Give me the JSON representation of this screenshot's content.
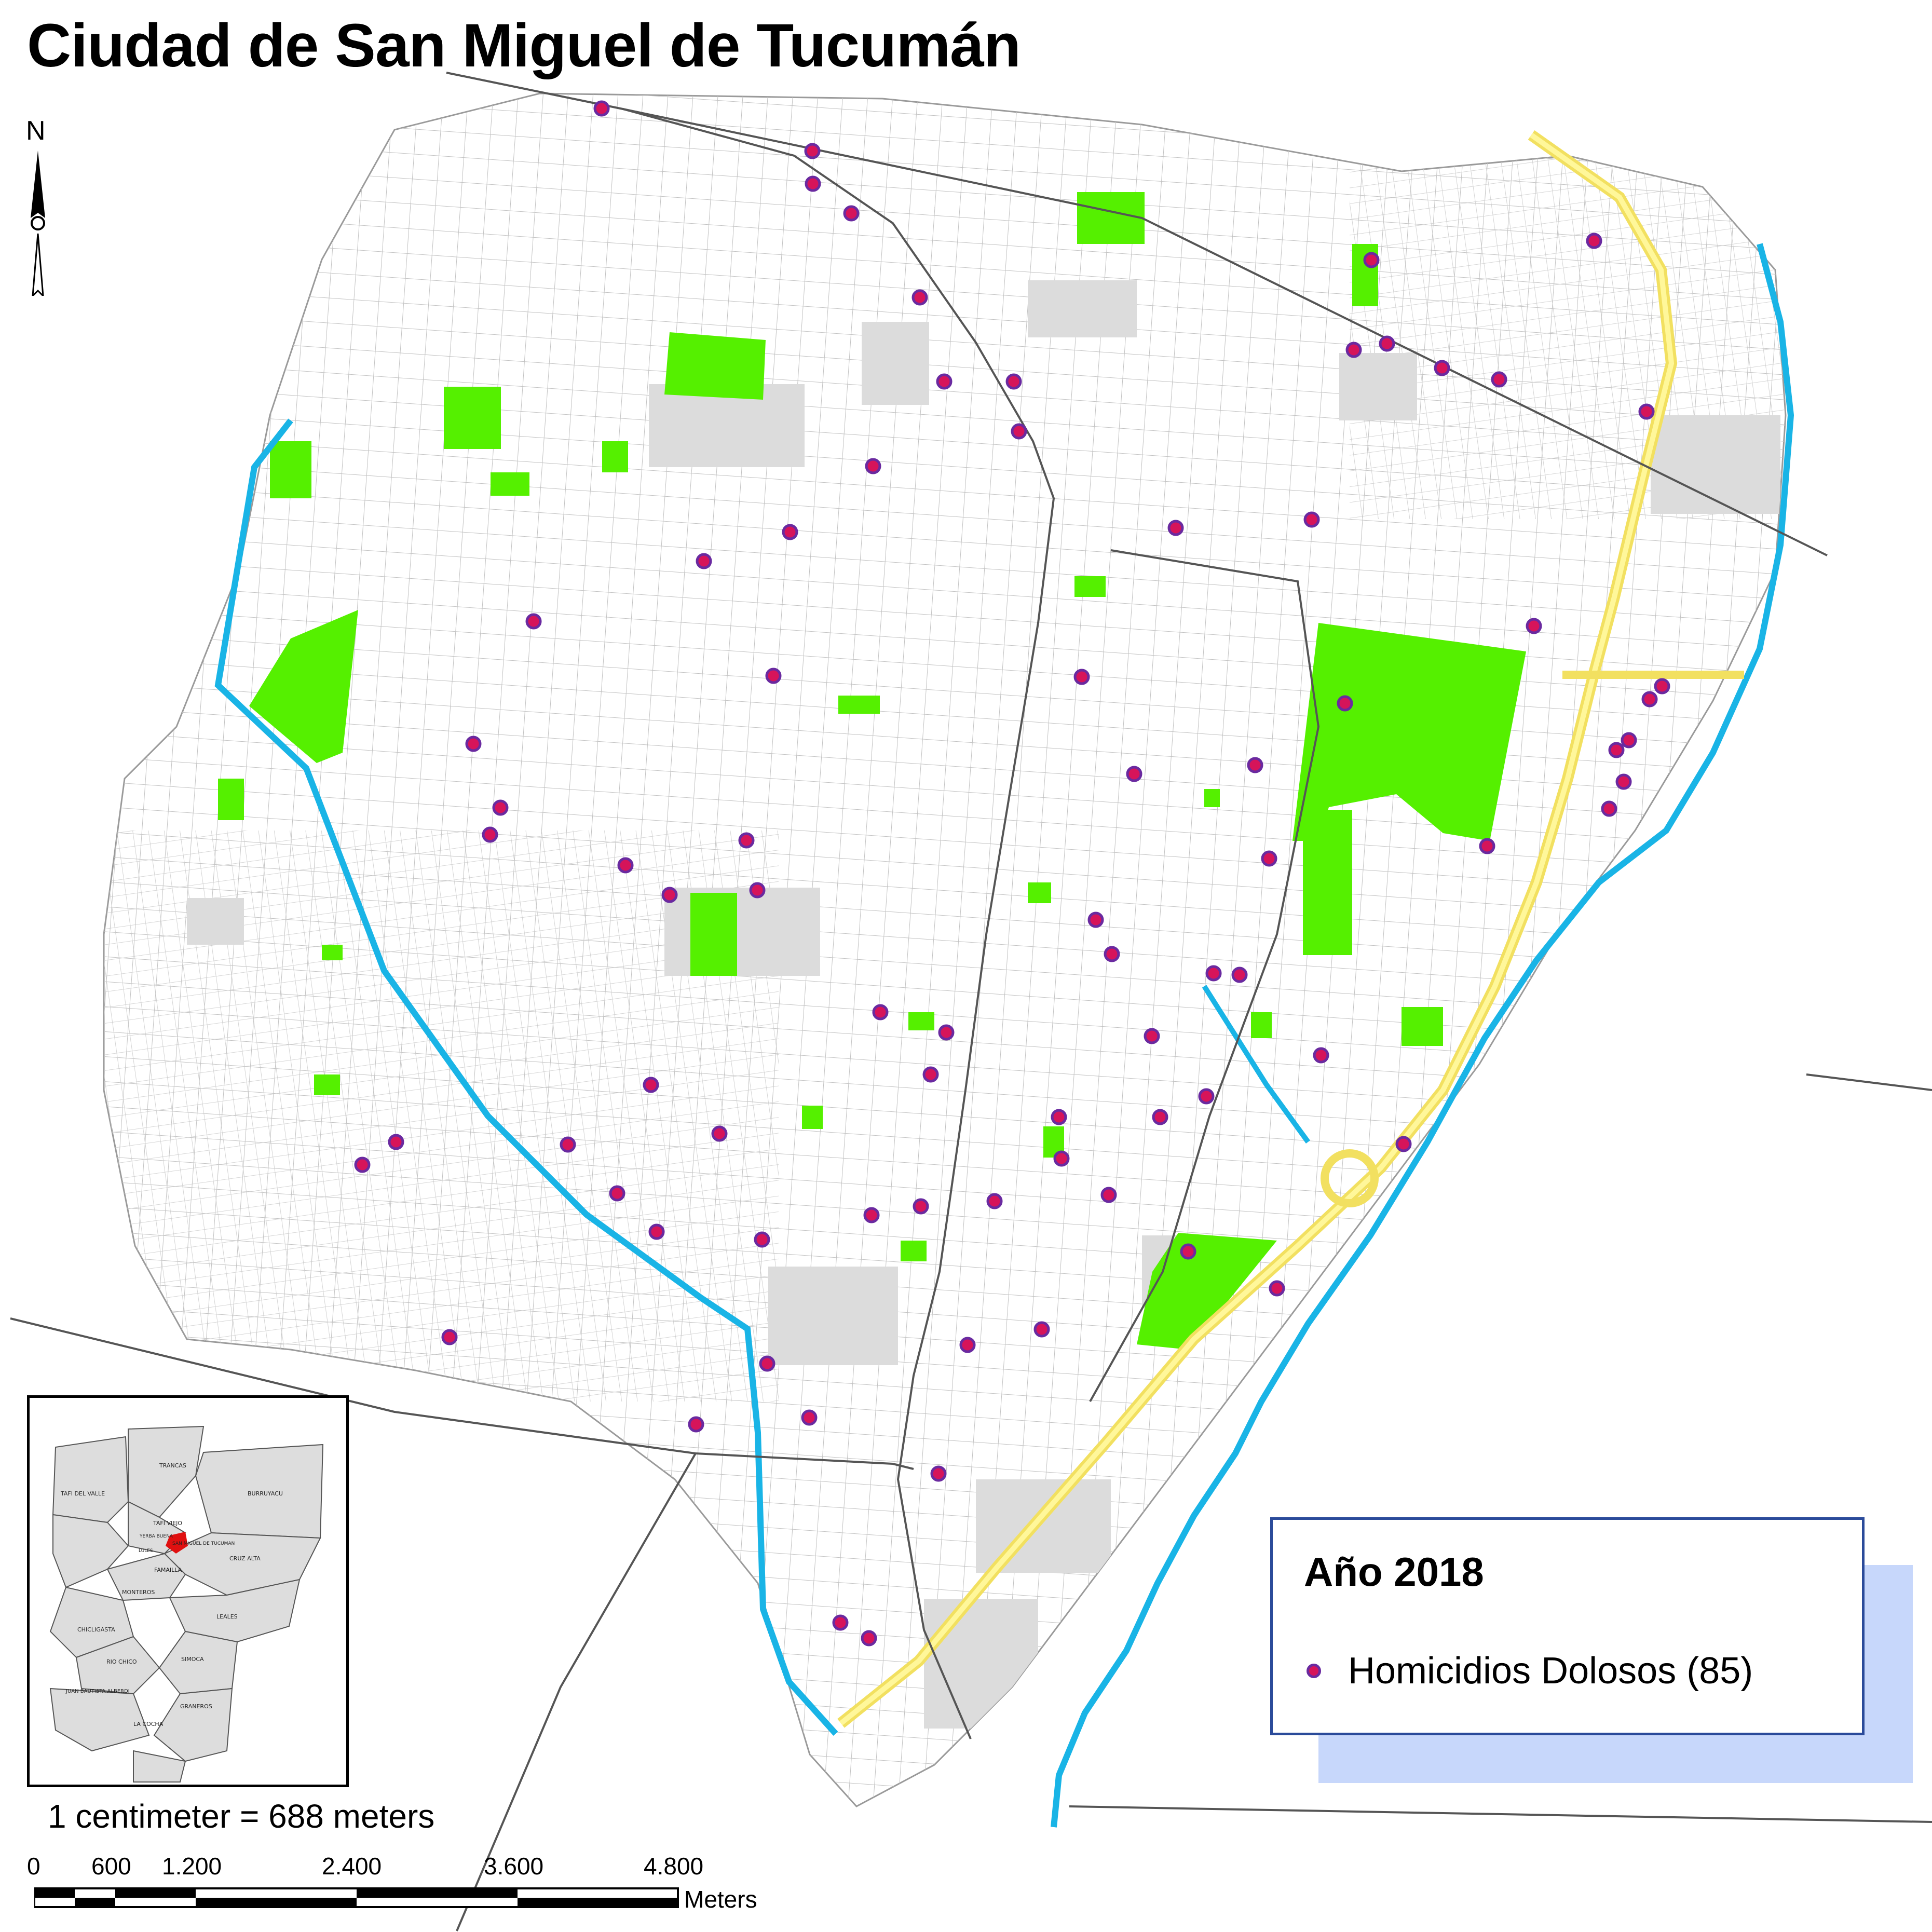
{
  "map": {
    "title": "Ciudad de San Miguel de Tucumán",
    "north_label": "N",
    "colors": {
      "streets": "#bdbdbd",
      "railways": "#555555",
      "parks": "#55f000",
      "blocks": "#e0e0e0",
      "river": "#19b4e6",
      "highway": "#f7ef7a",
      "marker_fill": "#d6145a",
      "marker_outline": "#6a2aa0"
    },
    "legend": {
      "title": "Año 2018",
      "item_label": "Homicidios Dolosos (85)",
      "count": 85
    },
    "scale": {
      "text": "1 centimeter = 688 meters",
      "ticks": [
        "0",
        "600",
        "1.200",
        "2.400",
        "3.600",
        "4.800"
      ],
      "unit": "Meters"
    },
    "inset": {
      "departments": [
        "TRANCAS",
        "TAFI DEL VALLE",
        "BURRUYACU",
        "TAFI VIEJO",
        "YERBA BUENA",
        "SAN MIGUEL DE TUCUMAN",
        "LULES",
        "CRUZ ALTA",
        "FAMAILLA",
        "MONTEROS",
        "LEALES",
        "CHICLIGASTA",
        "RIO CHICO",
        "SIMOCA",
        "JUAN BAUTISTA ALBERDI",
        "GRANEROS",
        "LA COCHA"
      ]
    }
  }
}
